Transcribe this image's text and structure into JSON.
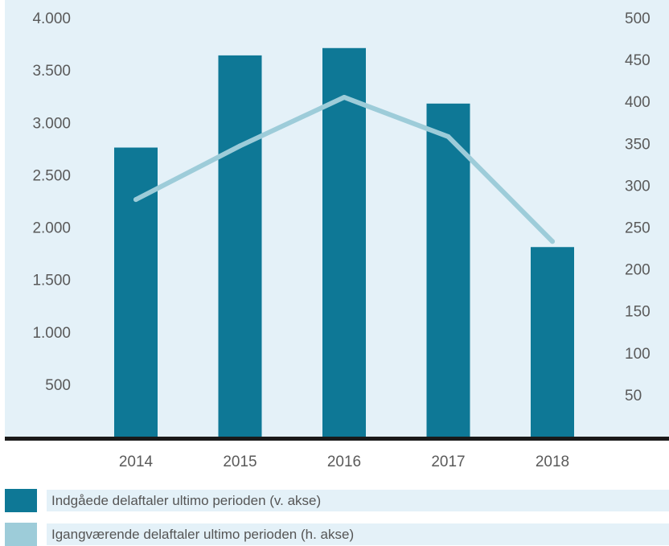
{
  "chart_data": {
    "type": "bar+line",
    "categories": [
      "2014",
      "2015",
      "2016",
      "2017",
      "2018"
    ],
    "series": [
      {
        "name": "Indgåede delaftaler ultimo perioden (v. akse)",
        "type": "bar",
        "axis": "left",
        "color": "#0e7896",
        "values": [
          2760,
          3640,
          3710,
          3180,
          1810
        ]
      },
      {
        "name": "Igangværende delaftaler ultimo perioden (h. akse)",
        "type": "line",
        "axis": "right",
        "color": "#9dccd9",
        "values": [
          283,
          347,
          405,
          358,
          233
        ]
      }
    ],
    "left_axis": {
      "ylim": [
        0,
        4000
      ],
      "ticks": [
        500,
        1000,
        1500,
        2000,
        2500,
        3000,
        3500,
        4000
      ],
      "tick_labels": [
        "500",
        "1.000",
        "1.500",
        "2.000",
        "2.500",
        "3.000",
        "3.500",
        "4.000"
      ]
    },
    "right_axis": {
      "ylim": [
        0,
        500
      ],
      "ticks": [
        50,
        100,
        150,
        200,
        250,
        300,
        350,
        400,
        450,
        500
      ],
      "tick_labels": [
        "50",
        "100",
        "150",
        "200",
        "250",
        "300",
        "350",
        "400",
        "450",
        "500"
      ]
    },
    "grid": false,
    "legend_position": "bottom",
    "colors": {
      "plot_background": "#e4f1f8",
      "baseline": "#1a1a1a",
      "tick_text": "#5a5a5a"
    }
  }
}
